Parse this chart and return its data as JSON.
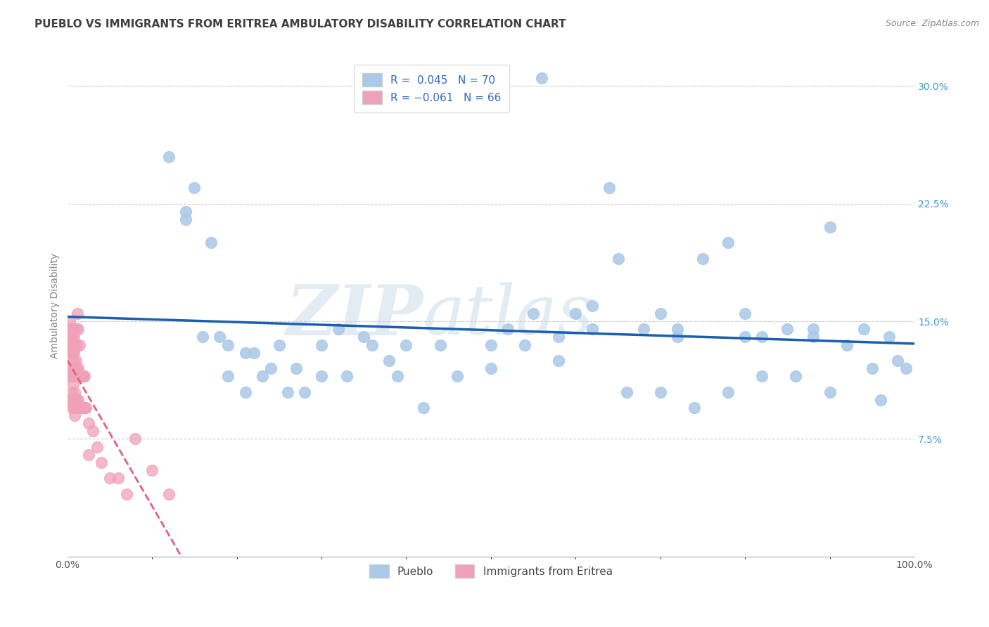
{
  "title": "PUEBLO VS IMMIGRANTS FROM ERITREA AMBULATORY DISABILITY CORRELATION CHART",
  "source": "Source: ZipAtlas.com",
  "ylabel": "Ambulatory Disability",
  "watermark": "ZIPatlas",
  "legend_labels": [
    "Pueblo",
    "Immigrants from Eritrea"
  ],
  "pueblo_R": 0.045,
  "pueblo_N": 70,
  "eritrea_R": -0.061,
  "eritrea_N": 66,
  "pueblo_color": "#aac8e8",
  "eritrea_color": "#f0a0b8",
  "pueblo_line_color": "#1a5fb0",
  "eritrea_line_color": "#e06080",
  "background_color": "#ffffff",
  "grid_color": "#cccccc",
  "title_color": "#404040",
  "source_color": "#888888",
  "ylabel_color": "#888888",
  "ytick_color": "#4499cc",
  "xlim": [
    0.0,
    1.0
  ],
  "ylim": [
    0.0,
    0.32
  ],
  "ytick_vals": [
    0.075,
    0.15,
    0.225,
    0.3
  ],
  "ytick_labels": [
    "7.5%",
    "15.0%",
    "22.5%",
    "30.0%"
  ],
  "pueblo_x": [
    0.12,
    0.14,
    0.14,
    0.15,
    0.17,
    0.18,
    0.19,
    0.21,
    0.22,
    0.23,
    0.25,
    0.27,
    0.28,
    0.3,
    0.32,
    0.35,
    0.38,
    0.4,
    0.44,
    0.5,
    0.52,
    0.55,
    0.58,
    0.6,
    0.62,
    0.65,
    0.68,
    0.7,
    0.72,
    0.75,
    0.78,
    0.8,
    0.82,
    0.85,
    0.88,
    0.9,
    0.92,
    0.95,
    0.97,
    0.99,
    0.16,
    0.19,
    0.21,
    0.24,
    0.26,
    0.3,
    0.33,
    0.36,
    0.39,
    0.42,
    0.46,
    0.5,
    0.54,
    0.58,
    0.62,
    0.66,
    0.7,
    0.74,
    0.78,
    0.82,
    0.86,
    0.9,
    0.94,
    0.98,
    0.56,
    0.64,
    0.72,
    0.8,
    0.88,
    0.96
  ],
  "pueblo_y": [
    0.255,
    0.22,
    0.215,
    0.235,
    0.2,
    0.14,
    0.135,
    0.13,
    0.13,
    0.115,
    0.135,
    0.12,
    0.105,
    0.115,
    0.145,
    0.14,
    0.125,
    0.135,
    0.135,
    0.135,
    0.145,
    0.155,
    0.14,
    0.155,
    0.16,
    0.19,
    0.145,
    0.155,
    0.14,
    0.19,
    0.2,
    0.155,
    0.14,
    0.145,
    0.145,
    0.21,
    0.135,
    0.12,
    0.14,
    0.12,
    0.14,
    0.115,
    0.105,
    0.12,
    0.105,
    0.135,
    0.115,
    0.135,
    0.115,
    0.095,
    0.115,
    0.12,
    0.135,
    0.125,
    0.145,
    0.105,
    0.105,
    0.095,
    0.105,
    0.115,
    0.115,
    0.105,
    0.145,
    0.125,
    0.305,
    0.235,
    0.145,
    0.14,
    0.14,
    0.1
  ],
  "eritrea_x": [
    0.002,
    0.003,
    0.003,
    0.004,
    0.004,
    0.004,
    0.005,
    0.005,
    0.005,
    0.005,
    0.006,
    0.006,
    0.006,
    0.007,
    0.007,
    0.008,
    0.008,
    0.008,
    0.009,
    0.009,
    0.009,
    0.01,
    0.01,
    0.011,
    0.011,
    0.012,
    0.012,
    0.013,
    0.013,
    0.014,
    0.015,
    0.015,
    0.016,
    0.016,
    0.017,
    0.017,
    0.018,
    0.018,
    0.019,
    0.02,
    0.02,
    0.021,
    0.022,
    0.025,
    0.025,
    0.03,
    0.035,
    0.04,
    0.05,
    0.06,
    0.07,
    0.08,
    0.1,
    0.12,
    0.003,
    0.004,
    0.005,
    0.006,
    0.007,
    0.008,
    0.009,
    0.01,
    0.011,
    0.012,
    0.013,
    0.014
  ],
  "eritrea_y": [
    0.14,
    0.135,
    0.12,
    0.13,
    0.115,
    0.1,
    0.14,
    0.12,
    0.105,
    0.095,
    0.13,
    0.115,
    0.1,
    0.125,
    0.11,
    0.13,
    0.115,
    0.095,
    0.12,
    0.105,
    0.09,
    0.125,
    0.1,
    0.12,
    0.1,
    0.115,
    0.095,
    0.12,
    0.1,
    0.115,
    0.115,
    0.095,
    0.115,
    0.095,
    0.115,
    0.095,
    0.115,
    0.095,
    0.115,
    0.115,
    0.095,
    0.095,
    0.095,
    0.085,
    0.065,
    0.08,
    0.07,
    0.06,
    0.05,
    0.05,
    0.04,
    0.075,
    0.055,
    0.04,
    0.15,
    0.145,
    0.14,
    0.135,
    0.145,
    0.14,
    0.135,
    0.145,
    0.135,
    0.155,
    0.145,
    0.135
  ],
  "title_fontsize": 11,
  "label_fontsize": 10,
  "tick_fontsize": 10,
  "legend_fontsize": 11
}
